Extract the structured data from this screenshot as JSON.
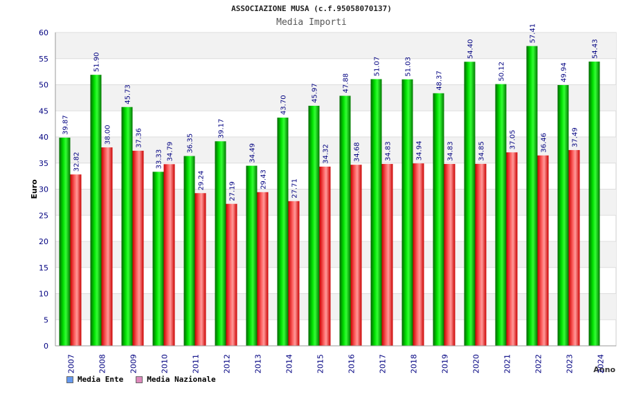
{
  "chart_data": {
    "type": "bar",
    "title": "ASSOCIAZIONE MUSA (c.f.95058070137)",
    "subtitle": "Media Importi",
    "xlabel": "Anno",
    "ylabel": "Euro",
    "ylim": [
      0,
      60
    ],
    "yticks": [
      0,
      5,
      10,
      15,
      20,
      25,
      30,
      35,
      40,
      45,
      50,
      55,
      60
    ],
    "grid": true,
    "legend_position": "bottom-left",
    "categories": [
      "2007",
      "2008",
      "2009",
      "2010",
      "2011",
      "2012",
      "2013",
      "2014",
      "2015",
      "2016",
      "2017",
      "2018",
      "2019",
      "2020",
      "2021",
      "2022",
      "2023",
      "2024"
    ],
    "series": [
      {
        "name": "Media Ente",
        "color": "#00c000",
        "legend_color": "#6699ee",
        "values": [
          39.87,
          51.9,
          45.73,
          33.33,
          36.35,
          39.17,
          34.49,
          43.7,
          45.97,
          47.88,
          51.07,
          51.03,
          48.37,
          54.4,
          50.12,
          57.41,
          49.94,
          54.43
        ],
        "labels": [
          "39.87",
          "51.90",
          "45.73",
          "33.33",
          "36.35",
          "39.17",
          "34.49",
          "43.70",
          "45.97",
          "47.88",
          "51.07",
          "51.03",
          "48.37",
          "54.40",
          "50.12",
          "57.41",
          "49.94",
          "54.43"
        ]
      },
      {
        "name": "Media Nazionale",
        "color": "#ee2222",
        "legend_color": "#dd88bb",
        "values": [
          32.82,
          38.0,
          37.36,
          34.79,
          29.24,
          27.19,
          29.43,
          27.71,
          34.32,
          34.68,
          34.83,
          34.94,
          34.83,
          34.85,
          37.05,
          36.46,
          37.49,
          null
        ],
        "labels": [
          "32.82",
          "38.00",
          "37.36",
          "34.79",
          "29.24",
          "27.19",
          "29.43",
          "27.71",
          "34.32",
          "34.68",
          "34.83",
          "34.94",
          "34.83",
          "34.85",
          "37.05",
          "36.46",
          "37.49",
          ""
        ]
      }
    ]
  }
}
